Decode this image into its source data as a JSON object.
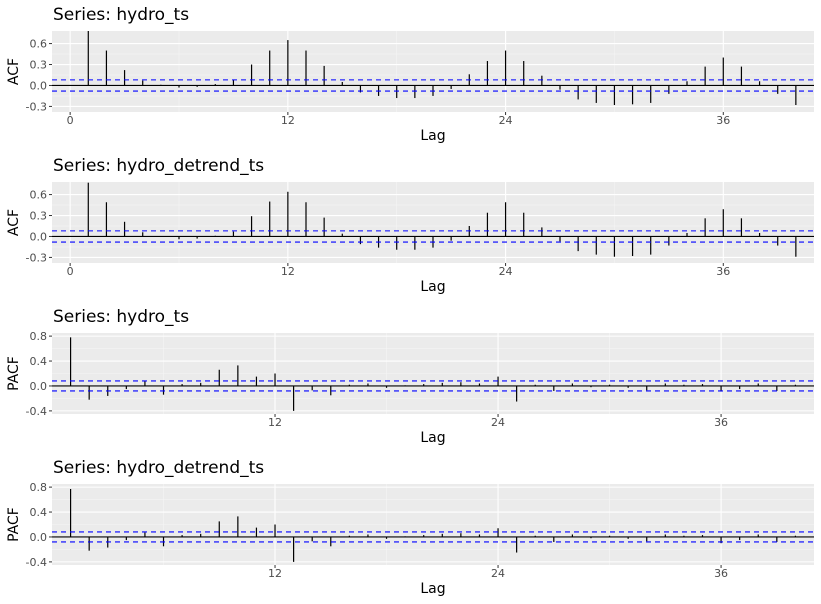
{
  "chart_data": [
    {
      "type": "bar",
      "title": "Series: hydro_ts",
      "xlabel": "Lag",
      "ylabel": "ACF",
      "x_ticks": [
        0,
        12,
        24,
        36
      ],
      "y_ticks": [
        "-0.3",
        "0.0",
        "0.3",
        "0.6"
      ],
      "ylim": [
        -0.38,
        0.78
      ],
      "xlim": [
        -1,
        41
      ],
      "conf_limit": 0.08,
      "lags": [
        1,
        2,
        3,
        4,
        5,
        6,
        7,
        8,
        9,
        10,
        11,
        12,
        13,
        14,
        15,
        16,
        17,
        18,
        19,
        20,
        21,
        22,
        23,
        24,
        25,
        26,
        27,
        28,
        29,
        30,
        31,
        32,
        33,
        34,
        35,
        36,
        37,
        38,
        39,
        40
      ],
      "values": [
        0.78,
        0.5,
        0.22,
        0.07,
        0.01,
        -0.03,
        -0.02,
        0.02,
        0.08,
        0.3,
        0.5,
        0.65,
        0.5,
        0.28,
        0.05,
        -0.1,
        -0.15,
        -0.18,
        -0.18,
        -0.15,
        -0.05,
        0.16,
        0.35,
        0.5,
        0.35,
        0.14,
        -0.06,
        -0.2,
        -0.25,
        -0.28,
        -0.27,
        -0.25,
        -0.12,
        0.06,
        0.27,
        0.4,
        0.27,
        0.06,
        -0.12,
        -0.28
      ]
    },
    {
      "type": "bar",
      "title": "Series: hydro_detrend_ts",
      "xlabel": "Lag",
      "ylabel": "ACF",
      "x_ticks": [
        0,
        12,
        24,
        36
      ],
      "y_ticks": [
        "-0.3",
        "0.0",
        "0.3",
        "0.6"
      ],
      "ylim": [
        -0.38,
        0.78
      ],
      "xlim": [
        -1,
        41
      ],
      "conf_limit": 0.08,
      "lags": [
        1,
        2,
        3,
        4,
        5,
        6,
        7,
        8,
        9,
        10,
        11,
        12,
        13,
        14,
        15,
        16,
        17,
        18,
        19,
        20,
        21,
        22,
        23,
        24,
        25,
        26,
        27,
        28,
        29,
        30,
        31,
        32,
        33,
        34,
        35,
        36,
        37,
        38,
        39,
        40
      ],
      "values": [
        0.77,
        0.49,
        0.21,
        0.06,
        0.0,
        -0.04,
        -0.03,
        0.01,
        0.07,
        0.29,
        0.5,
        0.64,
        0.49,
        0.27,
        0.04,
        -0.11,
        -0.16,
        -0.19,
        -0.19,
        -0.16,
        -0.06,
        0.15,
        0.34,
        0.49,
        0.34,
        0.13,
        -0.07,
        -0.21,
        -0.26,
        -0.29,
        -0.28,
        -0.26,
        -0.13,
        0.05,
        0.26,
        0.39,
        0.26,
        0.05,
        -0.13,
        -0.29
      ]
    },
    {
      "type": "bar",
      "title": "Series: hydro_ts",
      "xlabel": "Lag",
      "ylabel": "PACF",
      "x_ticks": [
        12,
        24,
        36
      ],
      "y_ticks": [
        "-0.4",
        "0.0",
        "0.4",
        "0.8"
      ],
      "ylim": [
        -0.45,
        0.85
      ],
      "xlim": [
        0,
        41
      ],
      "conf_limit": 0.08,
      "lags": [
        1,
        2,
        3,
        4,
        5,
        6,
        7,
        8,
        9,
        10,
        11,
        12,
        13,
        14,
        15,
        16,
        17,
        18,
        19,
        20,
        21,
        22,
        23,
        24,
        25,
        26,
        27,
        28,
        29,
        30,
        31,
        32,
        33,
        34,
        35,
        36,
        37,
        38,
        39,
        40
      ],
      "values": [
        0.78,
        -0.22,
        -0.16,
        -0.05,
        0.08,
        -0.14,
        0.03,
        0.05,
        0.26,
        0.33,
        0.15,
        0.2,
        -0.4,
        -0.07,
        -0.15,
        0.02,
        0.04,
        -0.03,
        0.01,
        0.03,
        0.05,
        0.06,
        0.04,
        0.15,
        -0.25,
        0.02,
        -0.08,
        0.04,
        -0.02,
        0.02,
        -0.03,
        -0.07,
        0.04,
        0.02,
        0.03,
        -0.09,
        -0.05,
        0.04,
        -0.08,
        0.02
      ]
    },
    {
      "type": "bar",
      "title": "Series: hydro_detrend_ts",
      "xlabel": "Lag",
      "ylabel": "PACF",
      "x_ticks": [
        12,
        24,
        36
      ],
      "y_ticks": [
        "-0.4",
        "0.0",
        "0.4",
        "0.8"
      ],
      "ylim": [
        -0.45,
        0.85
      ],
      "xlim": [
        0,
        41
      ],
      "conf_limit": 0.08,
      "lags": [
        1,
        2,
        3,
        4,
        5,
        6,
        7,
        8,
        9,
        10,
        11,
        12,
        13,
        14,
        15,
        16,
        17,
        18,
        19,
        20,
        21,
        22,
        23,
        24,
        25,
        26,
        27,
        28,
        29,
        30,
        31,
        32,
        33,
        34,
        35,
        36,
        37,
        38,
        39,
        40
      ],
      "values": [
        0.77,
        -0.22,
        -0.17,
        -0.05,
        0.07,
        -0.15,
        0.03,
        0.05,
        0.25,
        0.33,
        0.15,
        0.2,
        -0.4,
        -0.07,
        -0.15,
        0.02,
        0.04,
        -0.03,
        0.01,
        0.03,
        0.05,
        0.06,
        0.04,
        0.14,
        -0.25,
        0.02,
        -0.08,
        0.04,
        -0.02,
        0.02,
        -0.03,
        -0.07,
        0.04,
        0.02,
        0.03,
        -0.1,
        -0.05,
        0.04,
        -0.08,
        0.02
      ]
    }
  ],
  "colors": {
    "panel_background": "#ebebeb",
    "grid_major": "#ffffff",
    "grid_minor": "#f5f5f5",
    "conf_line": "#0000ff",
    "bar": "#000000",
    "tick_text": "#4d4d4d"
  }
}
